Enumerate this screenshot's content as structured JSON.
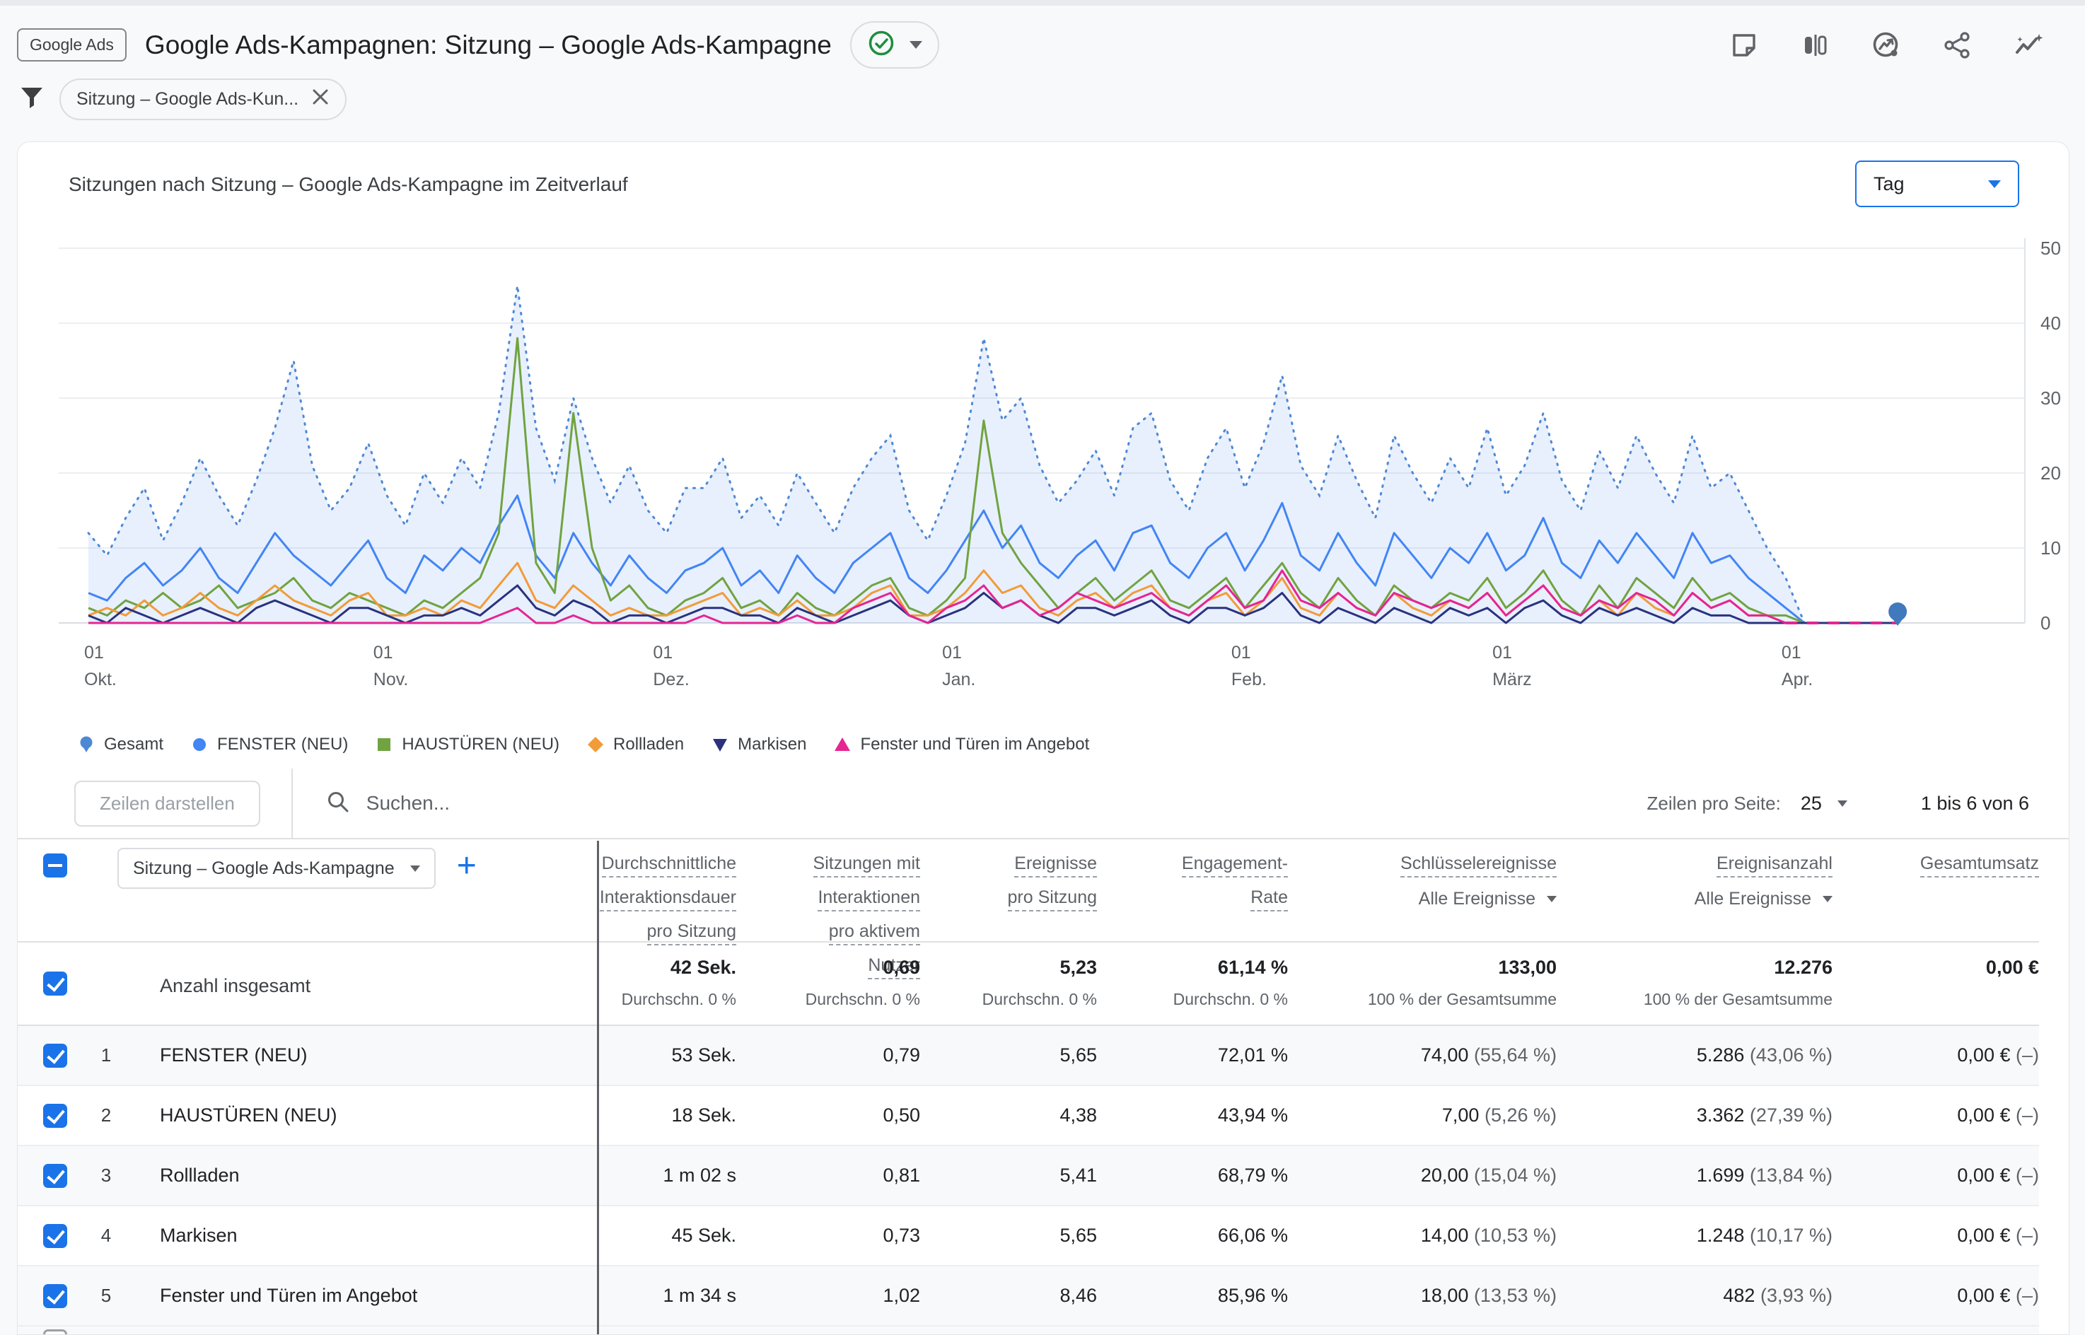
{
  "app": {
    "badge": "Google Ads",
    "title": "Google Ads-Kampagnen: Sitzung – Google Ads-Kampagne",
    "header_icons": [
      "add-note-icon",
      "compare-icon",
      "view-insights-icon",
      "share-icon",
      "insights-sparkline-icon"
    ],
    "verification_icon": "check-circle-icon"
  },
  "filter": {
    "chip": "Sitzung – Google Ads-Kun..."
  },
  "chart": {
    "title": "Sitzungen nach Sitzung – Google Ads-Kampagne im Zeitverlauf",
    "interval": "Tag"
  },
  "chart_data": {
    "type": "line",
    "title": "Sitzungen nach Sitzung – Google Ads-Kampagne im Zeitverlauf",
    "ylabel": "Sitzungen",
    "ylim": [
      0,
      50
    ],
    "yticks": [
      0,
      10,
      20,
      30,
      40,
      50
    ],
    "grid": true,
    "legend_position": "bottom",
    "domain_days": 204,
    "step_days": 2,
    "x_ticks": [
      {
        "day": 0,
        "line1": "01",
        "line2": "Okt."
      },
      {
        "day": 31,
        "line1": "01",
        "line2": "Nov."
      },
      {
        "day": 61,
        "line1": "01",
        "line2": "Dez."
      },
      {
        "day": 92,
        "line1": "01",
        "line2": "Jan."
      },
      {
        "day": 123,
        "line1": "01",
        "line2": "Feb."
      },
      {
        "day": 151,
        "line1": "01",
        "line2": "März"
      },
      {
        "day": 182,
        "line1": "01",
        "line2": "Apr."
      }
    ],
    "end_marker": {
      "day": 194,
      "value": 0,
      "series": "Gesamt",
      "color": "#4179bd"
    },
    "trail_dash": {
      "from_day": 182,
      "to_day": 194,
      "value": 0,
      "color": "#e52592"
    },
    "series": [
      {
        "name": "Gesamt",
        "marker": "balloon",
        "style": "dotted-area",
        "color": "#4e88d4",
        "fill": "rgba(66,133,244,0.12)",
        "values": [
          12,
          9,
          14,
          18,
          11,
          16,
          22,
          17,
          13,
          19,
          26,
          35,
          21,
          15,
          18,
          24,
          17,
          13,
          20,
          16,
          22,
          18,
          28,
          45,
          26,
          19,
          30,
          22,
          16,
          21,
          15,
          12,
          18,
          18,
          22,
          14,
          17,
          13,
          20,
          16,
          12,
          18,
          22,
          25,
          15,
          11,
          17,
          24,
          38,
          27,
          30,
          21,
          16,
          19,
          23,
          17,
          26,
          28,
          19,
          15,
          22,
          26,
          18,
          24,
          33,
          21,
          17,
          25,
          19,
          14,
          25,
          20,
          16,
          22,
          18,
          26,
          17,
          21,
          28,
          19,
          15,
          23,
          18,
          25,
          20,
          16,
          25,
          18,
          20,
          15,
          10,
          6,
          0,
          0,
          0,
          0,
          0,
          0
        ]
      },
      {
        "name": "FENSTER (NEU)",
        "marker": "circle",
        "style": "line",
        "color": "#4285f4",
        "values": [
          4,
          3,
          6,
          8,
          5,
          7,
          10,
          6,
          4,
          8,
          12,
          9,
          7,
          5,
          8,
          11,
          6,
          4,
          9,
          7,
          10,
          8,
          13,
          17,
          9,
          6,
          12,
          8,
          5,
          9,
          6,
          4,
          7,
          8,
          10,
          5,
          7,
          4,
          9,
          6,
          4,
          8,
          10,
          12,
          6,
          4,
          7,
          11,
          15,
          10,
          13,
          8,
          6,
          9,
          11,
          7,
          12,
          13,
          8,
          6,
          10,
          12,
          7,
          11,
          16,
          9,
          7,
          12,
          8,
          5,
          12,
          9,
          6,
          10,
          8,
          12,
          7,
          9,
          14,
          8,
          6,
          11,
          8,
          12,
          9,
          6,
          12,
          8,
          9,
          6,
          4,
          2,
          0,
          0,
          0,
          0,
          0,
          0
        ]
      },
      {
        "name": "HAUSTÜREN (NEU)",
        "marker": "square",
        "style": "line",
        "color": "#71a340",
        "values": [
          2,
          1,
          3,
          2,
          4,
          2,
          3,
          5,
          2,
          3,
          4,
          6,
          3,
          2,
          4,
          3,
          2,
          1,
          3,
          2,
          4,
          6,
          12,
          38,
          8,
          4,
          28,
          10,
          3,
          5,
          2,
          1,
          3,
          4,
          6,
          2,
          3,
          1,
          4,
          2,
          1,
          3,
          5,
          6,
          2,
          1,
          3,
          6,
          27,
          12,
          8,
          5,
          2,
          4,
          6,
          3,
          5,
          7,
          3,
          2,
          4,
          6,
          2,
          5,
          8,
          4,
          2,
          6,
          3,
          1,
          5,
          3,
          2,
          4,
          3,
          6,
          2,
          4,
          7,
          3,
          1,
          5,
          2,
          6,
          4,
          2,
          6,
          3,
          4,
          2,
          1,
          1,
          0,
          0,
          0,
          0,
          0,
          0
        ]
      },
      {
        "name": "Rollladen",
        "marker": "diamond",
        "style": "line",
        "color": "#f29b38",
        "values": [
          1,
          2,
          1,
          3,
          1,
          2,
          4,
          2,
          1,
          3,
          5,
          3,
          2,
          1,
          3,
          4,
          1,
          1,
          2,
          1,
          3,
          2,
          5,
          8,
          3,
          2,
          5,
          3,
          1,
          2,
          1,
          1,
          2,
          3,
          4,
          1,
          2,
          1,
          3,
          1,
          1,
          2,
          4,
          5,
          1,
          1,
          2,
          4,
          7,
          4,
          5,
          2,
          1,
          3,
          4,
          2,
          4,
          5,
          2,
          1,
          3,
          4,
          1,
          3,
          6,
          2,
          1,
          4,
          2,
          1,
          4,
          2,
          1,
          3,
          2,
          4,
          1,
          3,
          5,
          2,
          1,
          3,
          1,
          4,
          2,
          1,
          4,
          2,
          3,
          1,
          1,
          0,
          0,
          0,
          0,
          0,
          0,
          0
        ]
      },
      {
        "name": "Markisen",
        "marker": "triangle-down",
        "style": "line",
        "color": "#2a327e",
        "values": [
          1,
          0,
          2,
          1,
          0,
          1,
          2,
          1,
          0,
          2,
          3,
          2,
          1,
          0,
          2,
          2,
          1,
          0,
          1,
          1,
          2,
          1,
          3,
          5,
          2,
          1,
          3,
          2,
          0,
          1,
          1,
          0,
          1,
          2,
          2,
          1,
          1,
          0,
          2,
          1,
          0,
          1,
          2,
          3,
          1,
          0,
          1,
          2,
          4,
          2,
          3,
          1,
          0,
          2,
          2,
          1,
          2,
          3,
          1,
          0,
          2,
          2,
          1,
          2,
          4,
          1,
          0,
          2,
          1,
          0,
          2,
          1,
          0,
          2,
          1,
          2,
          0,
          2,
          3,
          1,
          0,
          2,
          1,
          2,
          1,
          0,
          2,
          1,
          1,
          0,
          0,
          0,
          0,
          0,
          0,
          0,
          0,
          0
        ]
      },
      {
        "name": "Fenster und Türen im Angebot",
        "marker": "triangle-up",
        "style": "line",
        "color": "#e52592",
        "values": [
          0,
          0,
          0,
          0,
          0,
          0,
          0,
          0,
          0,
          0,
          0,
          0,
          0,
          0,
          0,
          0,
          0,
          0,
          0,
          0,
          0,
          0,
          1,
          2,
          0,
          0,
          1,
          0,
          0,
          0,
          0,
          0,
          0,
          1,
          0,
          0,
          0,
          0,
          1,
          0,
          0,
          2,
          3,
          4,
          1,
          0,
          2,
          3,
          5,
          2,
          3,
          1,
          2,
          4,
          3,
          2,
          3,
          4,
          2,
          1,
          3,
          5,
          2,
          3,
          7,
          3,
          2,
          4,
          2,
          1,
          4,
          3,
          2,
          3,
          2,
          4,
          1,
          3,
          5,
          2,
          1,
          3,
          2,
          4,
          3,
          1,
          4,
          2,
          3,
          1,
          1,
          0,
          null,
          null,
          null,
          null,
          null,
          null
        ]
      }
    ]
  },
  "table": {
    "toolbar": {
      "rows_button": "Zeilen darstellen",
      "search_placeholder": "Suchen...",
      "rows_per_page_label": "Zeilen pro Seite:",
      "rows_per_page_value": "25",
      "range": "1 bis 6 von 6"
    },
    "dimension_selector": "Sitzung – Google Ads-Kampagne",
    "columns": [
      {
        "lines": [
          "Durchschnittliche",
          "Interaktionsdauer",
          "pro Sitzung"
        ],
        "clip": true
      },
      {
        "lines": [
          "Sitzungen mit",
          "Interaktionen",
          "pro aktivem",
          "Nutzer"
        ]
      },
      {
        "lines": [
          "Ereignisse",
          "pro Sitzung"
        ]
      },
      {
        "lines": [
          "Engagement-",
          "Rate"
        ]
      },
      {
        "lines": [
          "Schlüsselereignisse"
        ],
        "sub": "Alle Ereignisse"
      },
      {
        "lines": [
          "Ereignisanzahl"
        ],
        "sub": "Alle Ereignisse"
      },
      {
        "lines": [
          "Gesamtumsatz"
        ]
      }
    ],
    "totals": {
      "label": "Anzahl insgesamt",
      "cells": [
        {
          "v": "42 Sek.",
          "sub": "Durchschn. 0 %"
        },
        {
          "v": "0,69",
          "sub": "Durchschn. 0 %"
        },
        {
          "v": "5,23",
          "sub": "Durchschn. 0 %"
        },
        {
          "v": "61,14 %",
          "sub": "Durchschn. 0 %"
        },
        {
          "v": "133,00",
          "sub": "100 % der Gesamtsumme"
        },
        {
          "v": "12.276",
          "sub": "100 % der Gesamtsumme"
        },
        {
          "v": "0,00 €",
          "sub": ""
        }
      ]
    },
    "rows": [
      {
        "n": "1",
        "name": "FENSTER (NEU)",
        "cells": [
          [
            "53 Sek.",
            ""
          ],
          [
            "0,79",
            ""
          ],
          [
            "5,65",
            ""
          ],
          [
            "72,01 %",
            ""
          ],
          [
            "74,00",
            "(55,64 %)"
          ],
          [
            "5.286",
            "(43,06 %)"
          ],
          [
            "0,00 €",
            "(–)"
          ]
        ]
      },
      {
        "n": "2",
        "name": "HAUSTÜREN (NEU)",
        "cells": [
          [
            "18 Sek.",
            ""
          ],
          [
            "0,50",
            ""
          ],
          [
            "4,38",
            ""
          ],
          [
            "43,94 %",
            ""
          ],
          [
            "7,00",
            "(5,26 %)"
          ],
          [
            "3.362",
            "(27,39 %)"
          ],
          [
            "0,00 €",
            "(–)"
          ]
        ]
      },
      {
        "n": "3",
        "name": "Rollladen",
        "cells": [
          [
            "1 m 02 s",
            ""
          ],
          [
            "0,81",
            ""
          ],
          [
            "5,41",
            ""
          ],
          [
            "68,79 %",
            ""
          ],
          [
            "20,00",
            "(15,04 %)"
          ],
          [
            "1.699",
            "(13,84 %)"
          ],
          [
            "0,00 €",
            "(–)"
          ]
        ]
      },
      {
        "n": "4",
        "name": "Markisen",
        "cells": [
          [
            "45 Sek.",
            ""
          ],
          [
            "0,73",
            ""
          ],
          [
            "5,65",
            ""
          ],
          [
            "66,06 %",
            ""
          ],
          [
            "14,00",
            "(10,53 %)"
          ],
          [
            "1.248",
            "(10,17 %)"
          ],
          [
            "0,00 €",
            "(–)"
          ]
        ]
      },
      {
        "n": "5",
        "name": "Fenster und Türen im Angebot",
        "cells": [
          [
            "1 m 34 s",
            ""
          ],
          [
            "1,02",
            ""
          ],
          [
            "8,46",
            ""
          ],
          [
            "85,96 %",
            ""
          ],
          [
            "18,00",
            "(13,53 %)"
          ],
          [
            "482",
            "(3,93 %)"
          ],
          [
            "0,00 €",
            "(–)"
          ]
        ]
      }
    ]
  }
}
